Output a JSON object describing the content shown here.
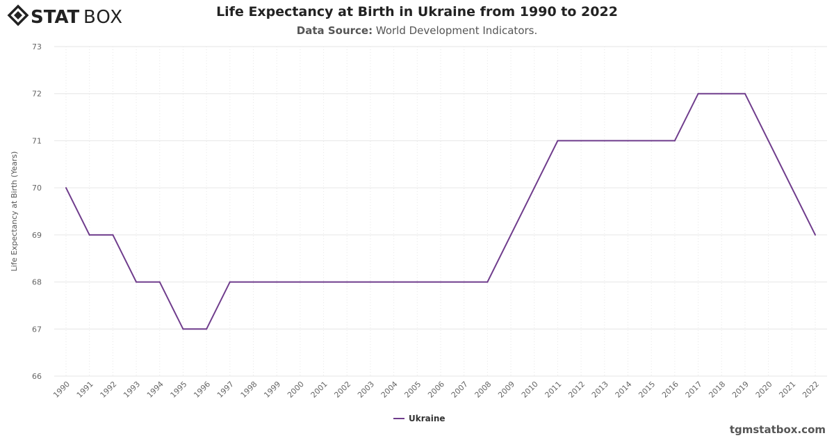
{
  "logo_text": "STATBOX",
  "title": "Life Expectancy at Birth in Ukraine from 1990 to 2022",
  "subtitle_label": "Data Source:",
  "subtitle_value": "World Development Indicators.",
  "credit": "tgmstatbox.com",
  "colors": {
    "series": "#6f3c8c",
    "grid": "#e6e6e6"
  },
  "chart_data": {
    "type": "line",
    "title": "Life Expectancy at Birth in Ukraine from 1990 to 2022",
    "xlabel": "",
    "ylabel": "Life Expectancy at Birth (Years)",
    "ylim": [
      66,
      73
    ],
    "yticks": [
      66,
      67,
      68,
      69,
      70,
      71,
      72,
      73
    ],
    "grid": true,
    "legend": "bottom-center",
    "x": [
      "1990",
      "1991",
      "1992",
      "1993",
      "1994",
      "1995",
      "1996",
      "1997",
      "1998",
      "1999",
      "2000",
      "2001",
      "2002",
      "2003",
      "2004",
      "2005",
      "2006",
      "2007",
      "2008",
      "2009",
      "2010",
      "2011",
      "2012",
      "2013",
      "2014",
      "2015",
      "2016",
      "2017",
      "2018",
      "2019",
      "2020",
      "2021",
      "2022"
    ],
    "series": [
      {
        "name": "Ukraine",
        "values": [
          70,
          69,
          69,
          68,
          68,
          67,
          67,
          68,
          68,
          68,
          68,
          68,
          68,
          68,
          68,
          68,
          68,
          68,
          68,
          69,
          70,
          71,
          71,
          71,
          71,
          71,
          71,
          72,
          72,
          72,
          71,
          70,
          69
        ]
      }
    ]
  }
}
